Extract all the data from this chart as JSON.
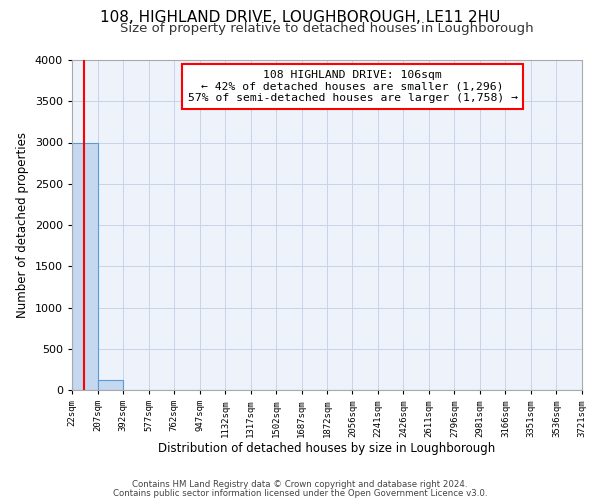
{
  "title": "108, HIGHLAND DRIVE, LOUGHBOROUGH, LE11 2HU",
  "subtitle": "Size of property relative to detached houses in Loughborough",
  "xlabel": "Distribution of detached houses by size in Loughborough",
  "ylabel": "Number of detached properties",
  "bin_edges": [
    22,
    207,
    392,
    577,
    762,
    947,
    1132,
    1317,
    1502,
    1687,
    1872,
    2056,
    2241,
    2426,
    2611,
    2796,
    2981,
    3166,
    3351,
    3536,
    3721
  ],
  "bin_labels": [
    "22sqm",
    "207sqm",
    "392sqm",
    "577sqm",
    "762sqm",
    "947sqm",
    "1132sqm",
    "1317sqm",
    "1502sqm",
    "1687sqm",
    "1872sqm",
    "2056sqm",
    "2241sqm",
    "2426sqm",
    "2611sqm",
    "2796sqm",
    "2981sqm",
    "3166sqm",
    "3351sqm",
    "3536sqm",
    "3721sqm"
  ],
  "bar_heights": [
    3000,
    120,
    0,
    0,
    0,
    0,
    0,
    0,
    0,
    0,
    0,
    0,
    0,
    0,
    0,
    0,
    0,
    0,
    0,
    0
  ],
  "bar_color": "#c5d8f0",
  "bar_edge_color": "#5b9bd5",
  "vline_x": 106,
  "vline_color": "red",
  "annotation_line1": "108 HIGHLAND DRIVE: 106sqm",
  "annotation_line2": "← 42% of detached houses are smaller (1,296)",
  "annotation_line3": "57% of semi-detached houses are larger (1,758) →",
  "annotation_box_color": "white",
  "annotation_box_edge_color": "red",
  "ylim": [
    0,
    4000
  ],
  "yticks": [
    0,
    500,
    1000,
    1500,
    2000,
    2500,
    3000,
    3500,
    4000
  ],
  "title_fontsize": 11,
  "subtitle_fontsize": 9.5,
  "xlabel_fontsize": 8.5,
  "ylabel_fontsize": 8.5,
  "footer_line1": "Contains HM Land Registry data © Crown copyright and database right 2024.",
  "footer_line2": "Contains public sector information licensed under the Open Government Licence v3.0.",
  "bg_color": "#eef2fb",
  "grid_color": "#c8d4e8"
}
